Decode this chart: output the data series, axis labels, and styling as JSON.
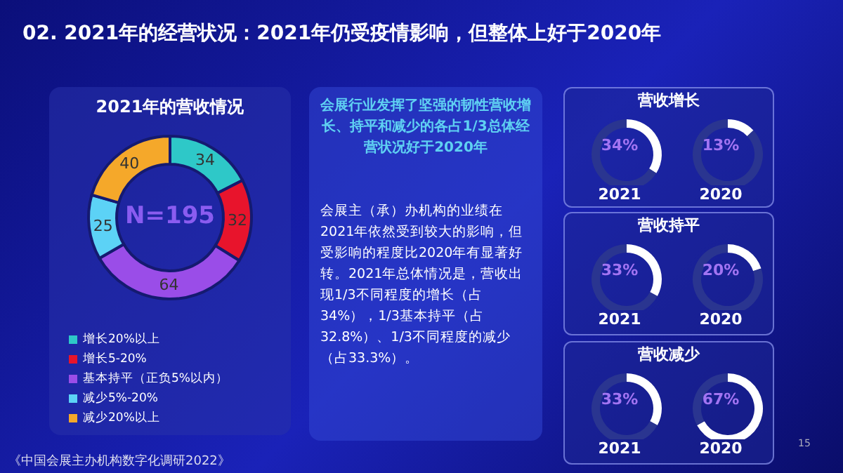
{
  "chart_data": [
    {
      "type": "other",
      "title": "02. 2021年的经营状况：2021年仍受疫情影响，但整体上好于2020年",
      "annotations": [
        "《中国会展主办机构数字化调研2022》",
        "15"
      ]
    },
    {
      "type": "donut",
      "title": "2021年的营收情况",
      "categories": [
        "增长20%以上",
        "增长5-20%",
        "基本持平（正负5%以内）",
        "减少5%-20%",
        "减少20%以上"
      ],
      "values": [
        34,
        32,
        64,
        25,
        40
      ],
      "colors": [
        "#2ec8c8",
        "#e8142c",
        "#9a4de8",
        "#5cd2f6",
        "#f5a82a"
      ],
      "annotations": [
        "N=195"
      ],
      "data_labels": true,
      "legend": "bottom"
    },
    {
      "type": "other",
      "title": "会展行业发挥了坚强的韧性营收增长、持平和减少的各占1/3总体经营状况好于2020年",
      "annotations": [
        "会展主（承）办机构的业绩在2021年依然受到较大的影响，但受影响的程度比2020年有显著好转。2021年总体情况是，营收出现1/3不同程度的增长（占34%），1/3基本持平（占32.8%）、1/3不同程度的减少（占33.3%）。"
      ]
    },
    {
      "type": "donut",
      "title": "营收增长",
      "xlabel": "2021",
      "categories": [
        null,
        null
      ],
      "values": [
        34,
        66
      ],
      "colors": [
        "#ffffff",
        "#2a3590"
      ],
      "annotations": [
        "34%"
      ]
    },
    {
      "type": "donut",
      "xlabel": "2020",
      "categories": [
        null,
        null
      ],
      "values": [
        13,
        87
      ],
      "colors": [
        "#ffffff",
        "#2a3590"
      ],
      "annotations": [
        "13%"
      ]
    },
    {
      "type": "donut",
      "title": "营收持平",
      "xlabel": "2021",
      "categories": [
        null,
        null
      ],
      "values": [
        33,
        67
      ],
      "colors": [
        "#ffffff",
        "#2a3590"
      ],
      "annotations": [
        "33%"
      ]
    },
    {
      "type": "donut",
      "xlabel": "2020",
      "categories": [
        null,
        null
      ],
      "values": [
        20,
        80
      ],
      "colors": [
        "#ffffff",
        "#2a3590"
      ],
      "annotations": [
        "20%"
      ]
    },
    {
      "type": "donut",
      "title": "营收减少",
      "xlabel": "2021",
      "categories": [
        null,
        null
      ],
      "values": [
        33,
        67
      ],
      "colors": [
        "#ffffff",
        "#2a3590"
      ],
      "annotations": [
        "33%"
      ]
    },
    {
      "type": "donut",
      "xlabel": "2020",
      "categories": [
        null,
        null
      ],
      "values": [
        67,
        33
      ],
      "colors": [
        "#ffffff",
        "#2a3590"
      ],
      "annotations": [
        "67%"
      ]
    }
  ]
}
